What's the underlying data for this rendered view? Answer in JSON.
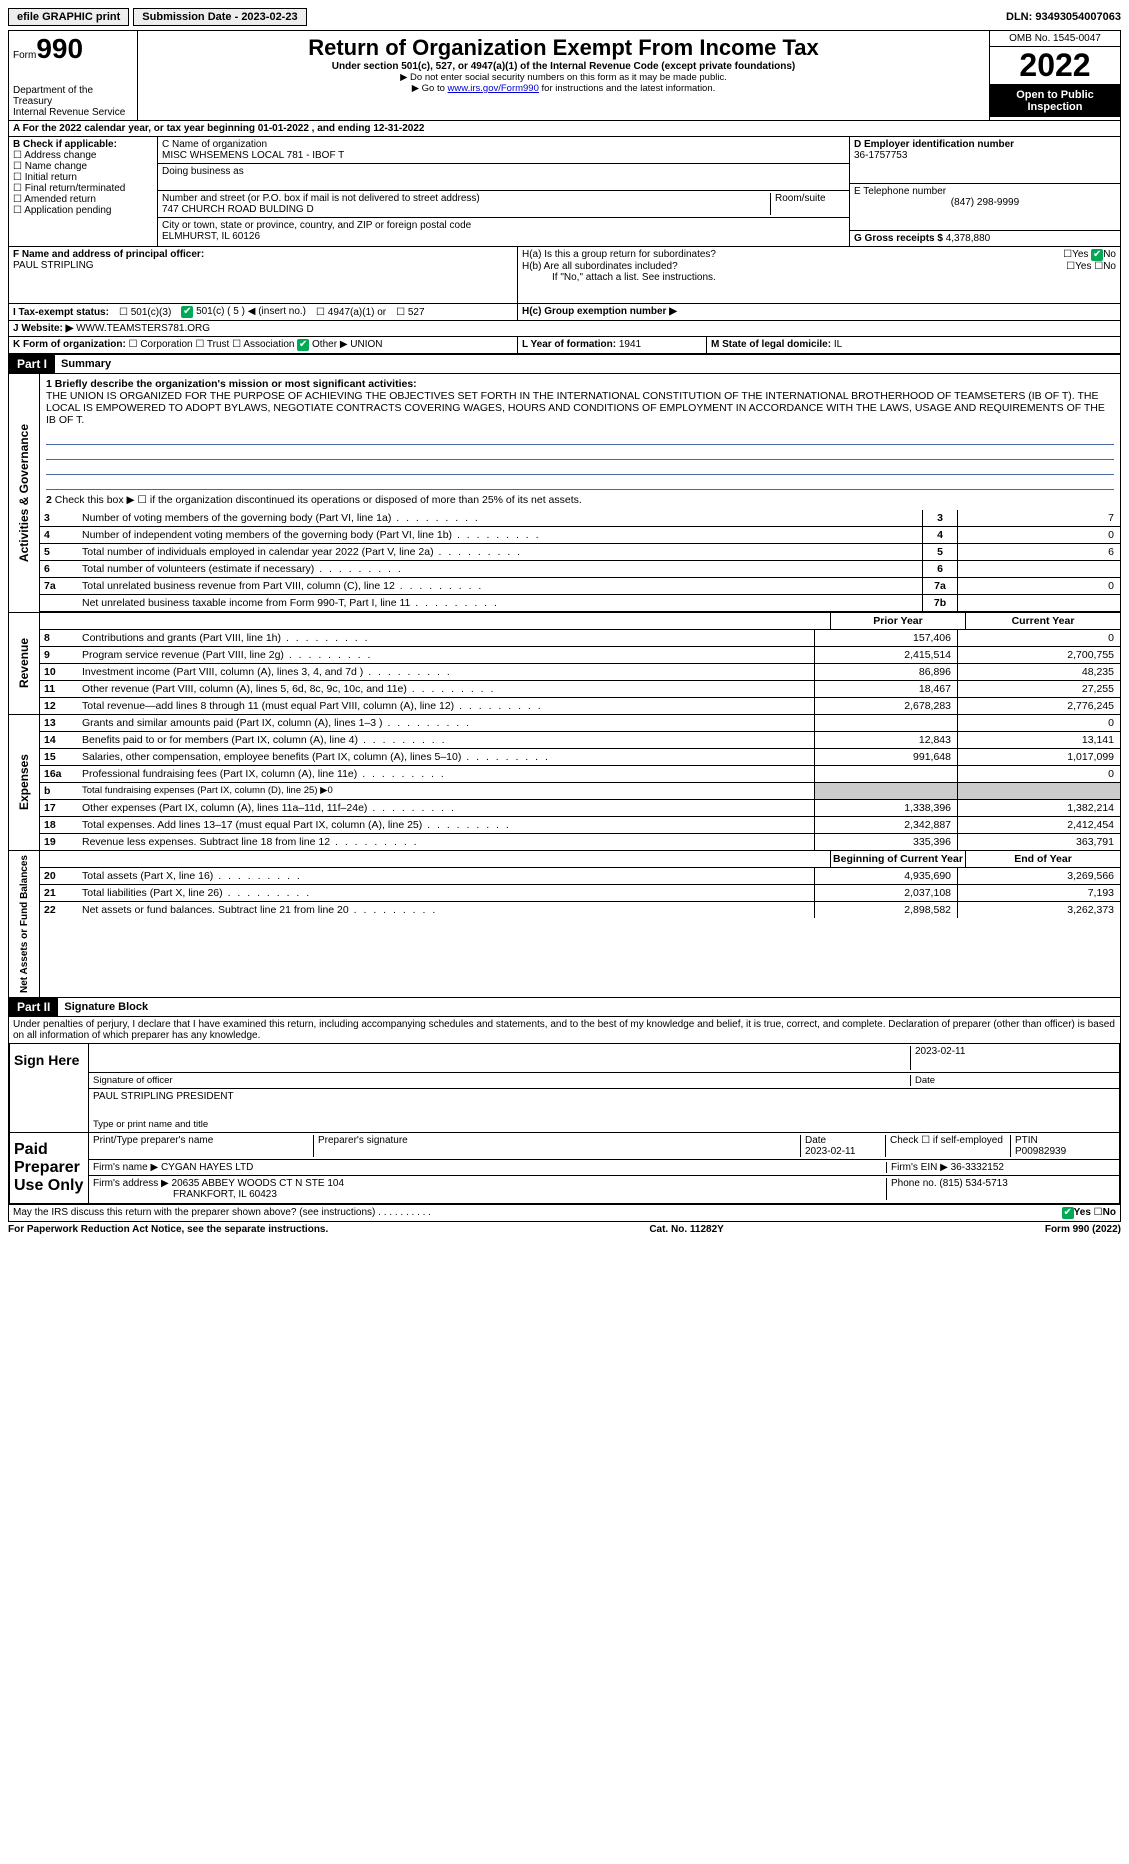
{
  "topbar": {
    "efile": "efile GRAPHIC print",
    "submission_label": "Submission Date - 2023-02-23",
    "dln": "DLN: 93493054007063"
  },
  "header": {
    "form_label": "Form",
    "form_number": "990",
    "dept": "Department of the Treasury",
    "irs": "Internal Revenue Service",
    "title": "Return of Organization Exempt From Income Tax",
    "subtitle": "Under section 501(c), 527, or 4947(a)(1) of the Internal Revenue Code (except private foundations)",
    "note1": "▶ Do not enter social security numbers on this form as it may be made public.",
    "note2_pre": "▶ Go to ",
    "note2_link": "www.irs.gov/Form990",
    "note2_post": " for instructions and the latest information.",
    "omb": "OMB No. 1545-0047",
    "year": "2022",
    "open": "Open to Public Inspection"
  },
  "periodA": {
    "text": "A For the 2022 calendar year, or tax year beginning 01-01-2022   , and ending 12-31-2022"
  },
  "sectionB": {
    "label": "B Check if applicable:",
    "opts": [
      "Address change",
      "Name change",
      "Initial return",
      "Final return/terminated",
      "Amended return",
      "Application pending"
    ]
  },
  "sectionC": {
    "name_label": "C Name of organization",
    "name": "MISC WHSEMENS LOCAL 781 - IBOF T",
    "dba_label": "Doing business as",
    "dba": "",
    "addr_label": "Number and street (or P.O. box if mail is not delivered to street address)",
    "room_label": "Room/suite",
    "addr": "747 CHURCH ROAD BULDING D",
    "city_label": "City or town, state or province, country, and ZIP or foreign postal code",
    "city": "ELMHURST, IL  60126"
  },
  "sectionD": {
    "label": "D Employer identification number",
    "val": "36-1757753"
  },
  "sectionE": {
    "label": "E Telephone number",
    "val": "(847) 298-9999"
  },
  "sectionG": {
    "label": "G Gross receipts $",
    "val": "4,378,880"
  },
  "sectionF": {
    "label": "F  Name and address of principal officer:",
    "val": "PAUL STRIPLING"
  },
  "sectionH": {
    "a": "H(a)  Is this a group return for subordinates?",
    "b": "H(b)  Are all subordinates included?",
    "b_note": "If \"No,\" attach a list. See instructions.",
    "c": "H(c)  Group exemption number ▶",
    "yes": "Yes",
    "no": "No"
  },
  "sectionI": {
    "label": "I   Tax-exempt status:",
    "opts": [
      "501(c)(3)",
      "501(c) ( 5 ) ◀ (insert no.)",
      "4947(a)(1) or",
      "527"
    ]
  },
  "sectionJ": {
    "label": "J   Website: ▶",
    "val": "WWW.TEAMSTERS781.ORG"
  },
  "sectionK": {
    "label": "K Form of organization:",
    "opts": [
      "Corporation",
      "Trust",
      "Association",
      "Other ▶"
    ],
    "other_val": "UNION"
  },
  "sectionL": {
    "label": "L Year of formation:",
    "val": "1941"
  },
  "sectionM": {
    "label": "M State of legal domicile:",
    "val": "IL"
  },
  "partI": {
    "header": "Part I",
    "title": "Summary",
    "line1_label": "1  Briefly describe the organization's mission or most significant activities:",
    "mission": "THE UNION IS ORGANIZED FOR THE PURPOSE OF ACHIEVING THE OBJECTIVES SET FORTH IN THE INTERNATIONAL CONSTITUTION OF THE INTERNATIONAL BROTHERHOOD OF TEAMSETERS (IB OF T). THE LOCAL IS EMPOWERED TO ADOPT BYLAWS, NEGOTIATE CONTRACTS COVERING WAGES, HOURS AND CONDITIONS OF EMPLOYMENT IN ACCORDANCE WITH THE LAWS, USAGE AND REQUIREMENTS OF THE IB OF T.",
    "line2": "Check this box ▶ ☐  if the organization discontinued its operations or disposed of more than 25% of its net assets.",
    "vlabels": {
      "ag": "Activities & Governance",
      "rev": "Revenue",
      "exp": "Expenses",
      "na": "Net Assets or Fund Balances"
    },
    "lines_ag": [
      {
        "n": "3",
        "d": "Number of voting members of the governing body (Part VI, line 1a)",
        "box": "3",
        "v": "7"
      },
      {
        "n": "4",
        "d": "Number of independent voting members of the governing body (Part VI, line 1b)",
        "box": "4",
        "v": "0"
      },
      {
        "n": "5",
        "d": "Total number of individuals employed in calendar year 2022 (Part V, line 2a)",
        "box": "5",
        "v": "6"
      },
      {
        "n": "6",
        "d": "Total number of volunteers (estimate if necessary)",
        "box": "6",
        "v": ""
      },
      {
        "n": "7a",
        "d": "Total unrelated business revenue from Part VIII, column (C), line 12",
        "box": "7a",
        "v": "0"
      },
      {
        "n": "",
        "d": "Net unrelated business taxable income from Form 990-T, Part I, line 11",
        "box": "7b",
        "v": ""
      }
    ],
    "col_prior": "Prior Year",
    "col_curr": "Current Year",
    "col_beg": "Beginning of Current Year",
    "col_end": "End of Year",
    "lines_rev": [
      {
        "n": "8",
        "d": "Contributions and grants (Part VIII, line 1h)",
        "p": "157,406",
        "c": "0"
      },
      {
        "n": "9",
        "d": "Program service revenue (Part VIII, line 2g)",
        "p": "2,415,514",
        "c": "2,700,755"
      },
      {
        "n": "10",
        "d": "Investment income (Part VIII, column (A), lines 3, 4, and 7d )",
        "p": "86,896",
        "c": "48,235"
      },
      {
        "n": "11",
        "d": "Other revenue (Part VIII, column (A), lines 5, 6d, 8c, 9c, 10c, and 11e)",
        "p": "18,467",
        "c": "27,255"
      },
      {
        "n": "12",
        "d": "Total revenue—add lines 8 through 11 (must equal Part VIII, column (A), line 12)",
        "p": "2,678,283",
        "c": "2,776,245"
      }
    ],
    "lines_exp": [
      {
        "n": "13",
        "d": "Grants and similar amounts paid (Part IX, column (A), lines 1–3 )",
        "p": "",
        "c": "0"
      },
      {
        "n": "14",
        "d": "Benefits paid to or for members (Part IX, column (A), line 4)",
        "p": "12,843",
        "c": "13,141"
      },
      {
        "n": "15",
        "d": "Salaries, other compensation, employee benefits (Part IX, column (A), lines 5–10)",
        "p": "991,648",
        "c": "1,017,099"
      },
      {
        "n": "16a",
        "d": "Professional fundraising fees (Part IX, column (A), line 11e)",
        "p": "",
        "c": "0"
      },
      {
        "n": "b",
        "d": "Total fundraising expenses (Part IX, column (D), line 25) ▶0",
        "p": "SHADE",
        "c": "SHADE"
      },
      {
        "n": "17",
        "d": "Other expenses (Part IX, column (A), lines 11a–11d, 11f–24e)",
        "p": "1,338,396",
        "c": "1,382,214"
      },
      {
        "n": "18",
        "d": "Total expenses. Add lines 13–17 (must equal Part IX, column (A), line 25)",
        "p": "2,342,887",
        "c": "2,412,454"
      },
      {
        "n": "19",
        "d": "Revenue less expenses. Subtract line 18 from line 12",
        "p": "335,396",
        "c": "363,791"
      }
    ],
    "lines_na": [
      {
        "n": "20",
        "d": "Total assets (Part X, line 16)",
        "p": "4,935,690",
        "c": "3,269,566"
      },
      {
        "n": "21",
        "d": "Total liabilities (Part X, line 26)",
        "p": "2,037,108",
        "c": "7,193"
      },
      {
        "n": "22",
        "d": "Net assets or fund balances. Subtract line 21 from line 20",
        "p": "2,898,582",
        "c": "3,262,373"
      }
    ]
  },
  "partII": {
    "header": "Part II",
    "title": "Signature Block",
    "decl": "Under penalties of perjury, I declare that I have examined this return, including accompanying schedules and statements, and to the best of my knowledge and belief, it is true, correct, and complete. Declaration of preparer (other than officer) is based on all information of which preparer has any knowledge.",
    "sign_here": "Sign Here",
    "sig_officer": "Signature of officer",
    "date": "Date",
    "date_val": "2023-02-11",
    "name_title": "PAUL STRIPLING PRESIDENT",
    "name_label": "Type or print name and title",
    "paid": "Paid Preparer Use Only",
    "prep_name_label": "Print/Type preparer's name",
    "prep_sig_label": "Preparer's signature",
    "prep_date": "2023-02-11",
    "self_emp": "Check ☐ if self-employed",
    "ptin_label": "PTIN",
    "ptin": "P00982939",
    "firm_name_label": "Firm's name   ▶",
    "firm_name": "CYGAN HAYES LTD",
    "firm_ein_label": "Firm's EIN ▶",
    "firm_ein": "36-3332152",
    "firm_addr_label": "Firm's address ▶",
    "firm_addr1": "20635 ABBEY WOODS CT N STE 104",
    "firm_addr2": "FRANKFORT, IL  60423",
    "phone_label": "Phone no.",
    "phone": "(815) 534-5713",
    "may_irs": "May the IRS discuss this return with the preparer shown above? (see instructions)"
  },
  "footer": {
    "pra": "For Paperwork Reduction Act Notice, see the separate instructions.",
    "cat": "Cat. No. 11282Y",
    "form": "Form 990 (2022)"
  }
}
